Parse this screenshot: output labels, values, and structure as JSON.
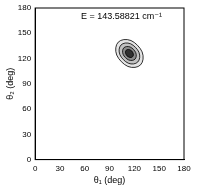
{
  "chart_data": {
    "type": "contour",
    "title": "E = 143.58821 cm⁻¹",
    "x_label": "θ₁ (deg)",
    "y_label": "θ₂ (deg)",
    "xlim": [
      0,
      180
    ],
    "xticks": [
      0,
      30,
      60,
      90,
      120,
      150,
      180
    ],
    "ylim": [
      0,
      180
    ],
    "yticks": [
      0,
      30,
      60,
      90,
      120,
      150,
      180
    ],
    "grid": false,
    "series": [
      {
        "color": "#000000",
        "x": [
          128,
          131,
          130,
          124,
          116,
          107,
          100,
          97,
          98,
          104,
          112,
          121
        ],
        "y": [
          112,
          119,
          128,
          136,
          142,
          143,
          140,
          133,
          124,
          116,
          110,
          109
        ]
      },
      {
        "color": "#000000",
        "x": [
          124.5,
          126.8,
          126,
          121.5,
          115.5,
          108.8,
          103.5,
          101.2,
          102,
          106.5,
          112.5,
          119.2
        ],
        "y": [
          115.5,
          120.8,
          127.5,
          133.5,
          138,
          138.8,
          136.5,
          131.2,
          124.5,
          118.5,
          114,
          113.2
        ]
      },
      {
        "color": "#000000",
        "x": [
          121,
          122.5,
          122,
          119,
          115,
          110.5,
          107,
          105.5,
          106,
          109,
          113,
          117.5
        ],
        "y": [
          119,
          122.5,
          127,
          131,
          134,
          134.5,
          133,
          129.5,
          125,
          121,
          118,
          117.5
        ]
      },
      {
        "color": "#000000",
        "x": [
          118,
          119,
          118.5,
          117,
          114.5,
          112,
          110,
          109,
          109.5,
          111,
          113.5,
          116
        ],
        "y": [
          122,
          124,
          126.5,
          129,
          130.5,
          131,
          130,
          128,
          125.5,
          123,
          121.5,
          121
        ]
      }
    ]
  }
}
